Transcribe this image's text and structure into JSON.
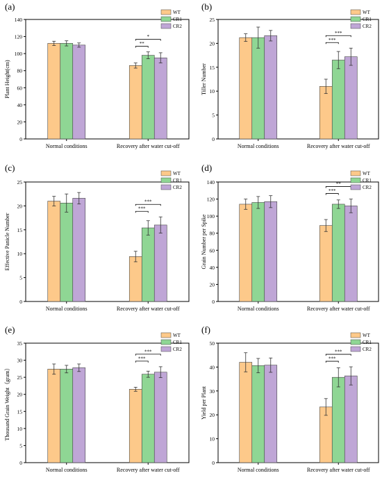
{
  "legend": [
    "WT",
    "CR1",
    "CR2"
  ],
  "colors": {
    "WT": "#fdc98a",
    "CR1": "#8fd694",
    "CR2": "#bfa6d6"
  },
  "chart_data": [
    {
      "type": "bar",
      "panel": "(a)",
      "ylabel": "Plant Height(cm)",
      "categories": [
        "Normal conditions",
        "Recovery after water cut-off"
      ],
      "ylim": [
        0,
        140
      ],
      "yticks": [
        0,
        20,
        40,
        60,
        80,
        100,
        120,
        140
      ],
      "series": [
        {
          "name": "WT",
          "values": [
            112,
            86
          ],
          "errors": [
            2.5,
            3
          ]
        },
        {
          "name": "CR1",
          "values": [
            112,
            98
          ],
          "errors": [
            3,
            4
          ]
        },
        {
          "name": "CR2",
          "values": [
            110,
            95
          ],
          "errors": [
            2.5,
            6
          ]
        }
      ],
      "sig": [
        {
          "target": "CR1",
          "label": "**"
        },
        {
          "target": "CR2",
          "label": "*"
        }
      ]
    },
    {
      "type": "bar",
      "panel": "(b)",
      "ylabel": "Tiller Number",
      "categories": [
        "Normal conditions",
        "Recovery after water cut-off"
      ],
      "ylim": [
        0,
        25
      ],
      "yticks": [
        0,
        5,
        10,
        15,
        20,
        25
      ],
      "series": [
        {
          "name": "WT",
          "values": [
            21.2,
            11.0
          ],
          "errors": [
            0.8,
            1.5
          ]
        },
        {
          "name": "CR1",
          "values": [
            21.2,
            16.5
          ],
          "errors": [
            2.2,
            1.8
          ]
        },
        {
          "name": "CR2",
          "values": [
            21.6,
            17.2
          ],
          "errors": [
            1.1,
            1.8
          ]
        }
      ],
      "sig": [
        {
          "target": "CR1",
          "label": "***"
        },
        {
          "target": "CR2",
          "label": "***"
        }
      ]
    },
    {
      "type": "bar",
      "panel": "(c)",
      "ylabel": "Effective Panicle Number",
      "categories": [
        "Normal conditions",
        "Recovery after water cut-off"
      ],
      "ylim": [
        0,
        25
      ],
      "yticks": [
        0,
        5,
        10,
        15,
        20,
        25
      ],
      "series": [
        {
          "name": "WT",
          "values": [
            21.0,
            9.4
          ],
          "errors": [
            1.0,
            1.1
          ]
        },
        {
          "name": "CR1",
          "values": [
            20.6,
            15.4
          ],
          "errors": [
            1.9,
            1.5
          ]
        },
        {
          "name": "CR2",
          "values": [
            21.6,
            16.0
          ],
          "errors": [
            1.2,
            1.7
          ]
        }
      ],
      "sig": [
        {
          "target": "CR1",
          "label": "***"
        },
        {
          "target": "CR2",
          "label": "***"
        }
      ]
    },
    {
      "type": "bar",
      "panel": "(d)",
      "ylabel": "Grain Number per Spike",
      "categories": [
        "Normal conditions",
        "Recovery after water cut-off"
      ],
      "ylim": [
        0,
        140
      ],
      "yticks": [
        0,
        20,
        40,
        60,
        80,
        100,
        120,
        140
      ],
      "series": [
        {
          "name": "WT",
          "values": [
            114,
            89
          ],
          "errors": [
            6,
            7
          ]
        },
        {
          "name": "CR1",
          "values": [
            116,
            114
          ],
          "errors": [
            7,
            5
          ]
        },
        {
          "name": "CR2",
          "values": [
            117,
            112
          ],
          "errors": [
            7,
            8
          ]
        }
      ],
      "sig": [
        {
          "target": "CR1",
          "label": "***"
        },
        {
          "target": "CR2",
          "label": "**"
        }
      ]
    },
    {
      "type": "bar",
      "panel": "(e)",
      "ylabel": "Thousand Grain Weight（gram）",
      "categories": [
        "Normal conditions",
        "Recovery after water cut-off"
      ],
      "ylim": [
        0,
        35
      ],
      "yticks": [
        0,
        5,
        10,
        15,
        20,
        25,
        30,
        35
      ],
      "series": [
        {
          "name": "WT",
          "values": [
            27.4,
            21.5
          ],
          "errors": [
            1.5,
            0.6
          ]
        },
        {
          "name": "CR1",
          "values": [
            27.4,
            25.9
          ],
          "errors": [
            1.1,
            0.9
          ]
        },
        {
          "name": "CR2",
          "values": [
            27.8,
            26.5
          ],
          "errors": [
            1.1,
            1.6
          ]
        }
      ],
      "sig": [
        {
          "target": "CR1",
          "label": "***"
        },
        {
          "target": "CR2",
          "label": "***"
        }
      ]
    },
    {
      "type": "bar",
      "panel": "(f)",
      "ylabel": "Yield per Plant",
      "categories": [
        "Normal conditions",
        "Recovery after water cut-off"
      ],
      "ylim": [
        0,
        50
      ],
      "yticks": [
        0,
        10,
        20,
        30,
        40,
        50
      ],
      "series": [
        {
          "name": "WT",
          "values": [
            42.0,
            23.3
          ],
          "errors": [
            4.0,
            3.5
          ]
        },
        {
          "name": "CR1",
          "values": [
            40.6,
            35.7
          ],
          "errors": [
            3.0,
            4.0
          ]
        },
        {
          "name": "CR2",
          "values": [
            40.8,
            36.3
          ],
          "errors": [
            3.0,
            3.8
          ]
        }
      ],
      "sig": [
        {
          "target": "CR1",
          "label": "***"
        },
        {
          "target": "CR2",
          "label": "***"
        }
      ]
    }
  ]
}
